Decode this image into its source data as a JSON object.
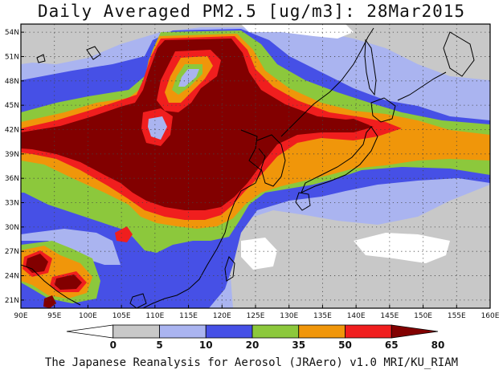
{
  "title": "Daily Averaged PM2.5 [ug/m3]: 28Mar2015",
  "footer": "The Japanese Reanalysis for Aerosol (JRAero) v1.0 MRI/KU_RIAM",
  "map": {
    "lon_range": [
      90,
      160
    ],
    "lat_range": [
      20,
      55
    ],
    "lon_ticks": [
      "90E",
      "95E",
      "100E",
      "105E",
      "110E",
      "115E",
      "120E",
      "125E",
      "130E",
      "135E",
      "140E",
      "145E",
      "150E",
      "155E",
      "160E"
    ],
    "lat_ticks": [
      "21N",
      "24N",
      "27N",
      "30N",
      "33N",
      "36N",
      "39N",
      "42N",
      "45N",
      "48N",
      "51N",
      "54N"
    ],
    "grid": "dotted"
  },
  "colorbar": {
    "levels": [
      "0",
      "5",
      "10",
      "20",
      "35",
      "50",
      "65",
      "80"
    ],
    "colors": [
      "#ffffff",
      "#c8c8c8",
      "#aab4f0",
      "#4650e6",
      "#8cc83c",
      "#f0960a",
      "#f01e1e",
      "#820000"
    ]
  }
}
